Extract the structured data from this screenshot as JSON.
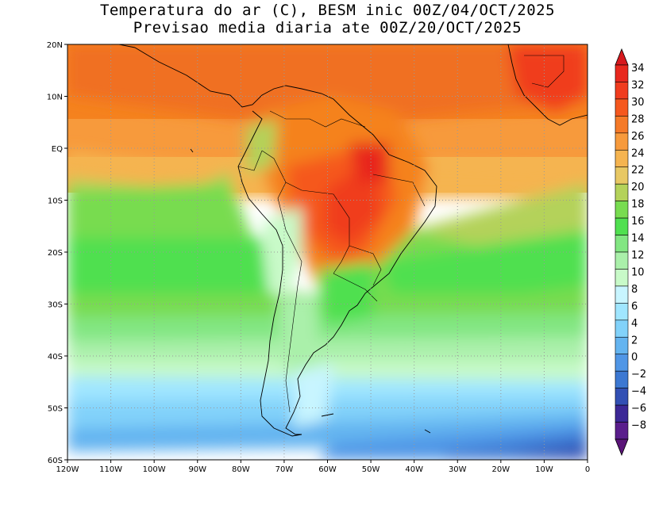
{
  "title": {
    "line1": "Temperatura do ar (C), BESM inic 00Z/04/OCT/2025",
    "line2": "Previsao media diaria ate 00Z/20/OCT/2025"
  },
  "map": {
    "lon_range": [
      -120,
      0
    ],
    "lat_range": [
      -60,
      20
    ],
    "lat_ticks": [
      {
        "value": 20,
        "label": "20N"
      },
      {
        "value": 10,
        "label": "10N"
      },
      {
        "value": 0,
        "label": "EQ"
      },
      {
        "value": -10,
        "label": "10S"
      },
      {
        "value": -20,
        "label": "20S"
      },
      {
        "value": -30,
        "label": "30S"
      },
      {
        "value": -40,
        "label": "40S"
      },
      {
        "value": -50,
        "label": "50S"
      },
      {
        "value": -60,
        "label": "60S"
      }
    ],
    "lon_ticks": [
      {
        "value": -120,
        "label": "120W"
      },
      {
        "value": -110,
        "label": "110W"
      },
      {
        "value": -100,
        "label": "100W"
      },
      {
        "value": -90,
        "label": "90W"
      },
      {
        "value": -80,
        "label": "80W"
      },
      {
        "value": -70,
        "label": "70W"
      },
      {
        "value": -60,
        "label": "60W"
      },
      {
        "value": -50,
        "label": "50W"
      },
      {
        "value": -40,
        "label": "40W"
      },
      {
        "value": -30,
        "label": "30W"
      },
      {
        "value": -20,
        "label": "20W"
      },
      {
        "value": -10,
        "label": "10W"
      },
      {
        "value": 0,
        "label": "0"
      }
    ]
  },
  "colorbar": {
    "levels": [
      34,
      32,
      30,
      28,
      26,
      24,
      22,
      20,
      18,
      16,
      14,
      12,
      10,
      8,
      6,
      4,
      2,
      0,
      -2,
      -4,
      -6,
      -8
    ],
    "labels": [
      "34",
      "32",
      "30",
      "28",
      "26",
      "24",
      "22",
      "20",
      "18",
      "16",
      "14",
      "12",
      "10",
      "8",
      "6",
      "4",
      "2",
      "0",
      "−2",
      "−4",
      "−6",
      "−8"
    ],
    "colors": [
      "#e8281e",
      "#f03c1e",
      "#f5581e",
      "#f57a28",
      "#f79a3c",
      "#f5b450",
      "#e8c864",
      "#b4d25a",
      "#78dc50",
      "#50e050",
      "#82e682",
      "#aaf0aa",
      "#c8fac8",
      "#c8f5ff",
      "#a0e6ff",
      "#82d2fa",
      "#64b4f0",
      "#5096e6",
      "#3c78d2",
      "#3250b4",
      "#3c2896",
      "#5a1e8c"
    ],
    "top_color": "#d7191e",
    "bottom_color": "#5a1478"
  }
}
